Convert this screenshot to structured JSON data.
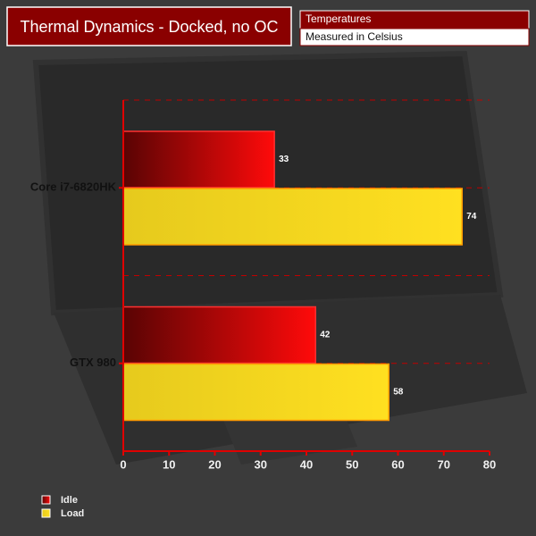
{
  "chart_data": {
    "type": "bar",
    "orientation": "horizontal",
    "title": "Thermal Dynamics - Docked, no OC",
    "subtitle": "Temperatures",
    "note": "Measured in Celsius",
    "categories": [
      "Core i7-6820HK",
      "GTX 980"
    ],
    "series": [
      {
        "name": "Idle",
        "color": "#ff0a0a",
        "values": [
          33,
          42
        ]
      },
      {
        "name": "Load",
        "color": "#ffe020",
        "values": [
          74,
          58
        ]
      }
    ],
    "xlim": [
      0,
      80
    ],
    "xticks": [
      0,
      10,
      20,
      30,
      40,
      50,
      60,
      70,
      80
    ],
    "legend": "bottom-left"
  }
}
